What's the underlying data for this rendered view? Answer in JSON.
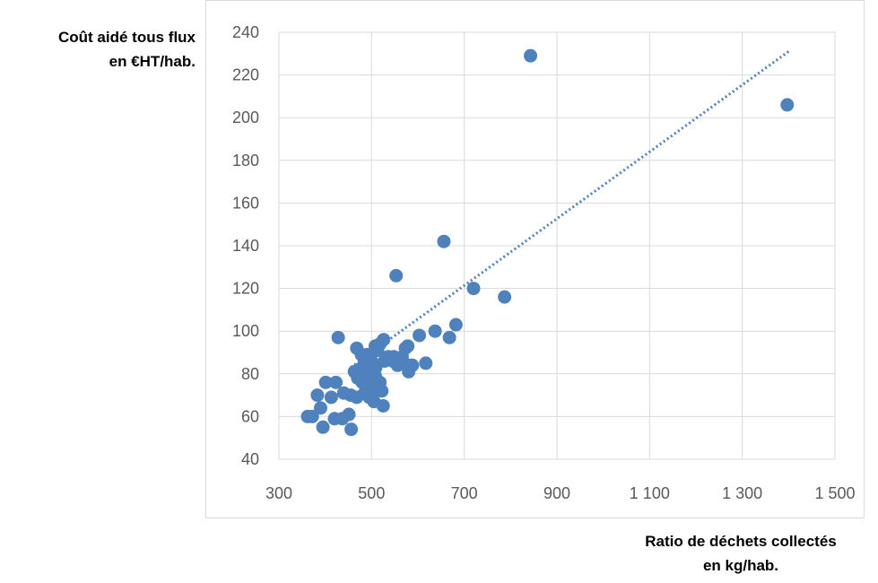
{
  "chart_data": {
    "type": "scatter",
    "title": "",
    "ylabel_lines": [
      "Coût aidé tous flux",
      "en €HT/hab."
    ],
    "xlabel_lines": [
      "Ratio de déchets collectés",
      "en kg/hab."
    ],
    "xlim": [
      300,
      1500
    ],
    "ylim": [
      40,
      240
    ],
    "x_ticks": [
      300,
      500,
      700,
      900,
      1100,
      1300,
      1500
    ],
    "x_tick_labels": [
      "300",
      "500",
      "700",
      "900",
      "1 100",
      "1 300",
      "1 500"
    ],
    "y_ticks": [
      40,
      60,
      80,
      100,
      120,
      140,
      160,
      180,
      200,
      220,
      240
    ],
    "y_tick_labels": [
      "40",
      "60",
      "80",
      "100",
      "120",
      "140",
      "160",
      "180",
      "200",
      "220",
      "240"
    ],
    "grid": true,
    "legend": false,
    "marker_color": "#4f81bd",
    "trendline": {
      "style": "dotted",
      "color": "#4f81bd",
      "x": [
        455,
        1400
      ],
      "y": [
        83,
        231
      ]
    },
    "series": [
      {
        "points": [
          [
            843,
            229
          ],
          [
            1397,
            206
          ],
          [
            656,
            142
          ],
          [
            553,
            126
          ],
          [
            720,
            120
          ],
          [
            787,
            116
          ],
          [
            682,
            103
          ],
          [
            668,
            97
          ],
          [
            637,
            100
          ],
          [
            603,
            98
          ],
          [
            617,
            85
          ],
          [
            428,
            97
          ],
          [
            468,
            92
          ],
          [
            478,
            89
          ],
          [
            490,
            89
          ],
          [
            508,
            93
          ],
          [
            513,
            91
          ],
          [
            518,
            94
          ],
          [
            526,
            96
          ],
          [
            536,
            88
          ],
          [
            546,
            86
          ],
          [
            556,
            84
          ],
          [
            566,
            88
          ],
          [
            573,
            92
          ],
          [
            578,
            93
          ],
          [
            584,
            84
          ],
          [
            588,
            84
          ],
          [
            580,
            81
          ],
          [
            548,
            88
          ],
          [
            528,
            86
          ],
          [
            500,
            86
          ],
          [
            483,
            84
          ],
          [
            473,
            82
          ],
          [
            463,
            81
          ],
          [
            491,
            80
          ],
          [
            498,
            78
          ],
          [
            508,
            79
          ],
          [
            518,
            76
          ],
          [
            513,
            73
          ],
          [
            522,
            72
          ],
          [
            502,
            70
          ],
          [
            495,
            69
          ],
          [
            485,
            71
          ],
          [
            468,
            69
          ],
          [
            455,
            70
          ],
          [
            440,
            71
          ],
          [
            423,
            76
          ],
          [
            401,
            76
          ],
          [
            413,
            69
          ],
          [
            383,
            70
          ],
          [
            390,
            64
          ],
          [
            372,
            60
          ],
          [
            362,
            60
          ],
          [
            420,
            59
          ],
          [
            437,
            59
          ],
          [
            451,
            61
          ],
          [
            395,
            55
          ],
          [
            456,
            54
          ],
          [
            525,
            65
          ],
          [
            505,
            67
          ],
          [
            480,
            76
          ],
          [
            470,
            78
          ],
          [
            500,
            75
          ],
          [
            509,
            83
          ]
        ]
      }
    ]
  }
}
